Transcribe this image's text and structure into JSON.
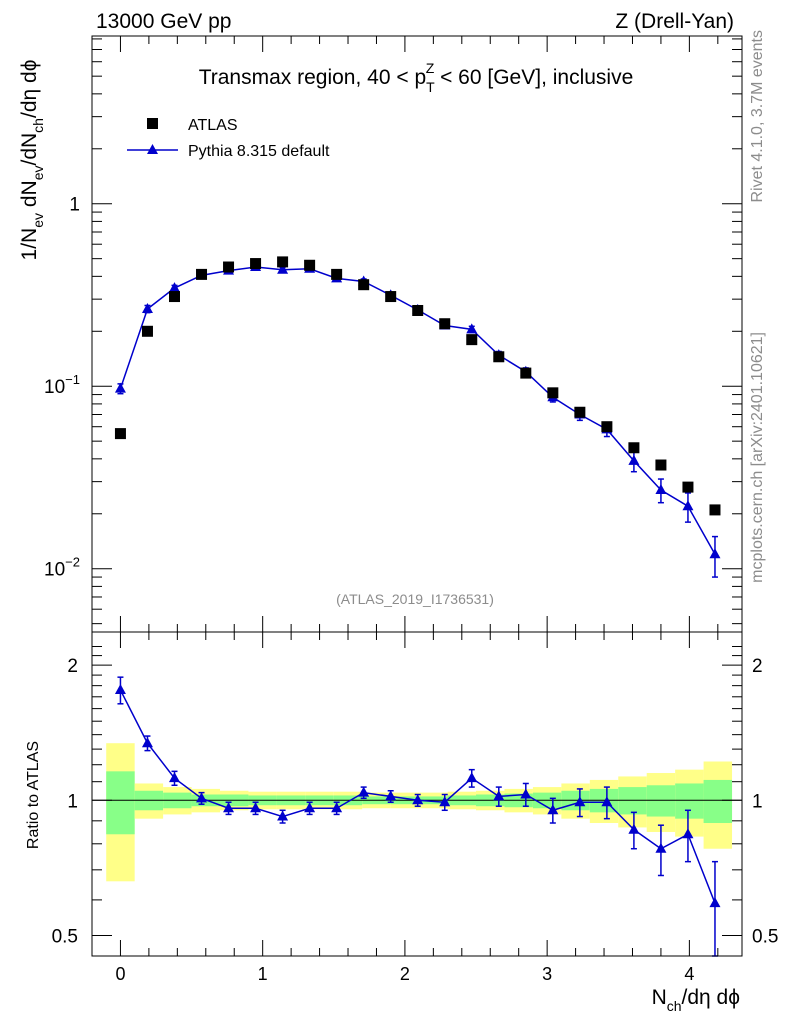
{
  "header": {
    "left": "13000 GeV pp",
    "right": "Z (Drell-Yan)"
  },
  "side_labels": {
    "rivet": "Rivet 4.1.0,  3.7M events",
    "mcplots": "mcplots.cern.ch [arXiv:2401.10621]"
  },
  "watermark": "(ATLAS_2019_I1736531)",
  "chart_data": [
    {
      "type": "scatter",
      "title": "Transmax region, 40 < p_T^Z < 60 [GeV], inclusive",
      "title_parts": {
        "prefix": "Transmax region, 40 < p",
        "sub": "T",
        "sup": "Z",
        "suffix": " < 60 [GeV], inclusive"
      },
      "xlabel": "N_ch/dη dϕ",
      "xlabel_parts": {
        "main": "N",
        "sub": "ch",
        "rest": "/dη dϕ"
      },
      "ylabel": "1/N_ev dN_ev/dN_ch/dη dϕ",
      "ylabel_parts": {
        "a": "1/N",
        "a_sub": "ev",
        "b": " dN",
        "b_sub": "ev",
        "c": "/dN",
        "c_sub": "ch",
        "d": "/dη dϕ"
      },
      "yscale": "log",
      "xlim": [
        -0.2,
        4.37
      ],
      "ylim": [
        0.0045,
        8.3
      ],
      "x_ticks": [
        0,
        1,
        2,
        3,
        4
      ],
      "x_tick_labels": [
        "0",
        "1",
        "2",
        "3",
        "4"
      ],
      "y_major_ticks": [
        1,
        0.1,
        0.01
      ],
      "y_tick_labels": [
        {
          "base": "1",
          "exp": ""
        },
        {
          "base": "10",
          "exp": "−1"
        },
        {
          "base": "10",
          "exp": "−2"
        }
      ],
      "legend": {
        "position": "top-left",
        "entries": [
          "ATLAS",
          "Pythia 8.315 default"
        ]
      },
      "x": [
        0,
        0.19,
        0.38,
        0.57,
        0.76,
        0.95,
        1.14,
        1.33,
        1.52,
        1.71,
        1.9,
        2.09,
        2.28,
        2.47,
        2.66,
        2.85,
        3.04,
        3.23,
        3.42,
        3.61,
        3.8,
        3.99,
        4.18
      ],
      "series": [
        {
          "name": "ATLAS",
          "marker": "square",
          "color": "#000000",
          "values": [
            0.055,
            0.2,
            0.31,
            0.41,
            0.45,
            0.47,
            0.48,
            0.46,
            0.41,
            0.36,
            0.31,
            0.26,
            0.22,
            0.18,
            0.145,
            0.118,
            0.092,
            0.072,
            0.06,
            0.046,
            0.037,
            0.028,
            0.021
          ]
        },
        {
          "name": "Pythia 8.315 default",
          "marker": "triangle",
          "color": "#0000cc",
          "values": [
            0.097,
            0.265,
            0.345,
            0.405,
            0.43,
            0.45,
            0.435,
            0.44,
            0.39,
            0.375,
            0.315,
            0.262,
            0.215,
            0.205,
            0.148,
            0.12,
            0.087,
            0.07,
            0.058,
            0.039,
            0.027,
            0.022,
            0.012
          ],
          "errors": [
            0.006,
            0.012,
            0.012,
            0.012,
            0.012,
            0.012,
            0.012,
            0.012,
            0.012,
            0.012,
            0.01,
            0.009,
            0.008,
            0.008,
            0.007,
            0.006,
            0.005,
            0.005,
            0.005,
            0.005,
            0.004,
            0.004,
            0.003
          ]
        }
      ]
    },
    {
      "type": "scatter",
      "title": "",
      "xlabel": "N_ch/dη dϕ",
      "ylabel": "Ratio to ATLAS",
      "yscale": "log",
      "xlim": [
        -0.2,
        4.37
      ],
      "ylim": [
        0.45,
        2.37
      ],
      "y_ticks": [
        2,
        1,
        0.5
      ],
      "y_tick_labels": [
        "2",
        "1",
        "0.5"
      ],
      "reference_line": 1,
      "band_x_edges": [
        -0.1,
        0.1,
        0.3,
        0.5,
        0.7,
        0.9,
        1.1,
        1.3,
        1.5,
        1.7,
        1.9,
        2.1,
        2.3,
        2.5,
        2.7,
        2.9,
        3.1,
        3.3,
        3.5,
        3.7,
        3.9,
        4.1,
        4.3
      ],
      "band_inner_halfwidth": [
        0.16,
        0.05,
        0.04,
        0.03,
        0.03,
        0.025,
        0.025,
        0.025,
        0.025,
        0.02,
        0.02,
        0.02,
        0.025,
        0.03,
        0.035,
        0.04,
        0.05,
        0.06,
        0.07,
        0.08,
        0.09,
        0.11
      ],
      "band_outer_halfwidth": [
        0.34,
        0.09,
        0.07,
        0.06,
        0.05,
        0.045,
        0.045,
        0.045,
        0.045,
        0.04,
        0.04,
        0.04,
        0.045,
        0.05,
        0.06,
        0.07,
        0.09,
        0.11,
        0.13,
        0.15,
        0.17,
        0.22
      ],
      "band_colors": {
        "outer": "#ffff88",
        "inner": "#88ff88"
      },
      "x": [
        0,
        0.19,
        0.38,
        0.57,
        0.76,
        0.95,
        1.14,
        1.33,
        1.52,
        1.71,
        1.9,
        2.09,
        2.28,
        2.47,
        2.66,
        2.85,
        3.04,
        3.23,
        3.42,
        3.61,
        3.8,
        3.99,
        4.18
      ],
      "series": [
        {
          "name": "Pythia 8.315 default",
          "marker": "triangle",
          "color": "#0000cc",
          "values": [
            1.76,
            1.34,
            1.12,
            1.01,
            0.96,
            0.96,
            0.92,
            0.96,
            0.96,
            1.04,
            1.02,
            1.0,
            0.99,
            1.12,
            1.02,
            1.03,
            0.95,
            0.99,
            0.99,
            0.86,
            0.78,
            0.84,
            0.59
          ],
          "errors": [
            0.12,
            0.05,
            0.04,
            0.03,
            0.03,
            0.03,
            0.03,
            0.03,
            0.03,
            0.03,
            0.03,
            0.03,
            0.04,
            0.05,
            0.05,
            0.06,
            0.06,
            0.07,
            0.08,
            0.08,
            0.1,
            0.11,
            0.14
          ]
        }
      ]
    }
  ]
}
